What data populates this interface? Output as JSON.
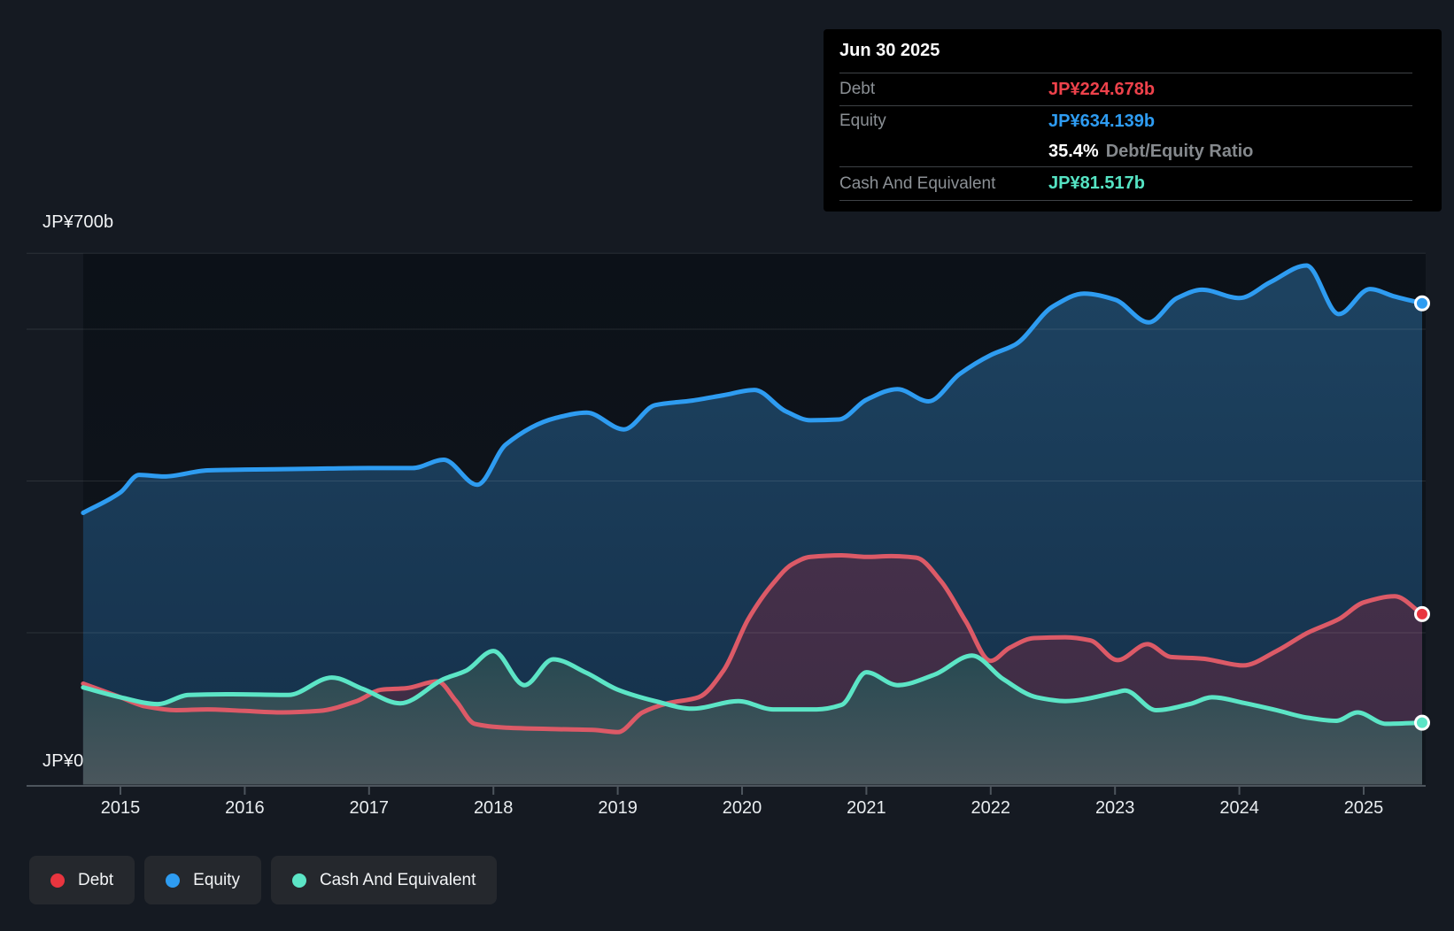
{
  "y_axis": {
    "top_label": "JP¥700b",
    "bottom_label": "JP¥0"
  },
  "x_axis": {
    "labels": [
      "2015",
      "2016",
      "2017",
      "2018",
      "2019",
      "2020",
      "2021",
      "2022",
      "2023",
      "2024",
      "2025"
    ]
  },
  "tooltip": {
    "date": "Jun 30 2025",
    "debt_label": "Debt",
    "debt_value": "JP¥224.678b",
    "equity_label": "Equity",
    "equity_value": "JP¥634.139b",
    "ratio_value": "35.4%",
    "ratio_label": "Debt/Equity Ratio",
    "cash_label": "Cash And Equivalent",
    "cash_value": "JP¥81.517b"
  },
  "legend": [
    {
      "label": "Debt",
      "color": "#e9353f"
    },
    {
      "label": "Equity",
      "color": "#2e9cf1"
    },
    {
      "label": "Cash And Equivalent",
      "color": "#5ce5c6"
    }
  ],
  "chart_data": {
    "type": "area",
    "title": "Debt to Equity history (JP¥ billions)",
    "x_unit": "decimal_year",
    "x_range": [
      2014.7,
      2025.5
    ],
    "ylim": [
      0,
      700
    ],
    "gridline_values": [
      700,
      600,
      400,
      200
    ],
    "grid": "on",
    "legend_position": "bottom-left",
    "last_point_date": "Jun 30 2025",
    "series": [
      {
        "name": "Equity",
        "color": "#2e9cf1",
        "dot_color": "#2e9cf1",
        "fill_top": "#1d4260",
        "fill_bottom": "#15304a",
        "points": [
          [
            2014.7,
            358
          ],
          [
            2015.0,
            385
          ],
          [
            2015.15,
            408
          ],
          [
            2015.35,
            406
          ],
          [
            2015.7,
            414
          ],
          [
            2016.0,
            415
          ],
          [
            2016.5,
            416
          ],
          [
            2017.0,
            417
          ],
          [
            2017.35,
            417
          ],
          [
            2017.6,
            428
          ],
          [
            2017.87,
            395
          ],
          [
            2018.1,
            448
          ],
          [
            2018.5,
            483
          ],
          [
            2018.75,
            490
          ],
          [
            2019.05,
            468
          ],
          [
            2019.3,
            500
          ],
          [
            2019.6,
            506
          ],
          [
            2019.85,
            513
          ],
          [
            2020.1,
            520
          ],
          [
            2020.35,
            492
          ],
          [
            2020.55,
            480
          ],
          [
            2020.78,
            481
          ],
          [
            2021.0,
            507
          ],
          [
            2021.25,
            521
          ],
          [
            2021.5,
            505
          ],
          [
            2021.75,
            541
          ],
          [
            2022.0,
            566
          ],
          [
            2022.2,
            580
          ],
          [
            2022.5,
            630
          ],
          [
            2022.75,
            647
          ],
          [
            2023.0,
            639
          ],
          [
            2023.27,
            609
          ],
          [
            2023.5,
            641
          ],
          [
            2023.7,
            652
          ],
          [
            2024.0,
            641
          ],
          [
            2024.25,
            662
          ],
          [
            2024.54,
            684
          ],
          [
            2024.8,
            620
          ],
          [
            2025.05,
            653
          ],
          [
            2025.25,
            643
          ],
          [
            2025.47,
            634.139
          ]
        ]
      },
      {
        "name": "Debt",
        "color": "#dc5a67",
        "dot_color": "#e9353f",
        "fill_top": "#45304a",
        "fill_bottom": "#3e2c44",
        "points": [
          [
            2014.7,
            133
          ],
          [
            2015.0,
            115
          ],
          [
            2015.2,
            103
          ],
          [
            2015.45,
            98
          ],
          [
            2015.7,
            99
          ],
          [
            2016.0,
            97
          ],
          [
            2016.3,
            95
          ],
          [
            2016.6,
            97
          ],
          [
            2016.9,
            110
          ],
          [
            2017.1,
            125
          ],
          [
            2017.3,
            127
          ],
          [
            2017.55,
            136
          ],
          [
            2017.7,
            110
          ],
          [
            2017.85,
            80
          ],
          [
            2018.1,
            75
          ],
          [
            2018.5,
            73
          ],
          [
            2018.8,
            72
          ],
          [
            2019.0,
            69
          ],
          [
            2019.2,
            95
          ],
          [
            2019.4,
            107
          ],
          [
            2019.65,
            115
          ],
          [
            2019.85,
            150
          ],
          [
            2020.05,
            218
          ],
          [
            2020.25,
            265
          ],
          [
            2020.4,
            290
          ],
          [
            2020.55,
            300
          ],
          [
            2020.8,
            302
          ],
          [
            2021.0,
            300
          ],
          [
            2021.2,
            301
          ],
          [
            2021.4,
            299
          ],
          [
            2021.6,
            268
          ],
          [
            2021.8,
            215
          ],
          [
            2022.0,
            163
          ],
          [
            2022.15,
            180
          ],
          [
            2022.35,
            193
          ],
          [
            2022.6,
            194
          ],
          [
            2022.8,
            190
          ],
          [
            2023.02,
            164
          ],
          [
            2023.26,
            185
          ],
          [
            2023.45,
            168
          ],
          [
            2023.7,
            166
          ],
          [
            2024.03,
            157
          ],
          [
            2024.3,
            176
          ],
          [
            2024.55,
            200
          ],
          [
            2024.8,
            218
          ],
          [
            2025.0,
            240
          ],
          [
            2025.25,
            248
          ],
          [
            2025.47,
            224.678
          ]
        ]
      },
      {
        "name": "Cash And Equivalent",
        "color": "#5ce5c6",
        "dot_color": "#5ce5c6",
        "fill_top": "#214750",
        "fill_bottom": "#4a565c",
        "points": [
          [
            2014.7,
            128
          ],
          [
            2015.0,
            115
          ],
          [
            2015.3,
            106
          ],
          [
            2015.55,
            118
          ],
          [
            2015.9,
            119
          ],
          [
            2016.35,
            118
          ],
          [
            2016.7,
            141
          ],
          [
            2016.95,
            126
          ],
          [
            2017.25,
            107
          ],
          [
            2017.6,
            139
          ],
          [
            2017.78,
            150
          ],
          [
            2018.0,
            176
          ],
          [
            2018.25,
            131
          ],
          [
            2018.48,
            165
          ],
          [
            2018.75,
            147
          ],
          [
            2019.0,
            125
          ],
          [
            2019.3,
            110
          ],
          [
            2019.6,
            100
          ],
          [
            2019.97,
            110
          ],
          [
            2020.25,
            99
          ],
          [
            2020.6,
            99
          ],
          [
            2020.8,
            105
          ],
          [
            2021.0,
            148
          ],
          [
            2021.25,
            131
          ],
          [
            2021.55,
            145
          ],
          [
            2021.85,
            170
          ],
          [
            2022.1,
            139
          ],
          [
            2022.37,
            115
          ],
          [
            2022.6,
            110
          ],
          [
            2023.0,
            121
          ],
          [
            2023.08,
            124
          ],
          [
            2023.33,
            98
          ],
          [
            2023.6,
            106
          ],
          [
            2023.78,
            115
          ],
          [
            2024.05,
            107
          ],
          [
            2024.3,
            98
          ],
          [
            2024.55,
            88
          ],
          [
            2024.78,
            84
          ],
          [
            2024.95,
            95
          ],
          [
            2025.18,
            80
          ],
          [
            2025.47,
            81.517
          ]
        ]
      }
    ]
  }
}
